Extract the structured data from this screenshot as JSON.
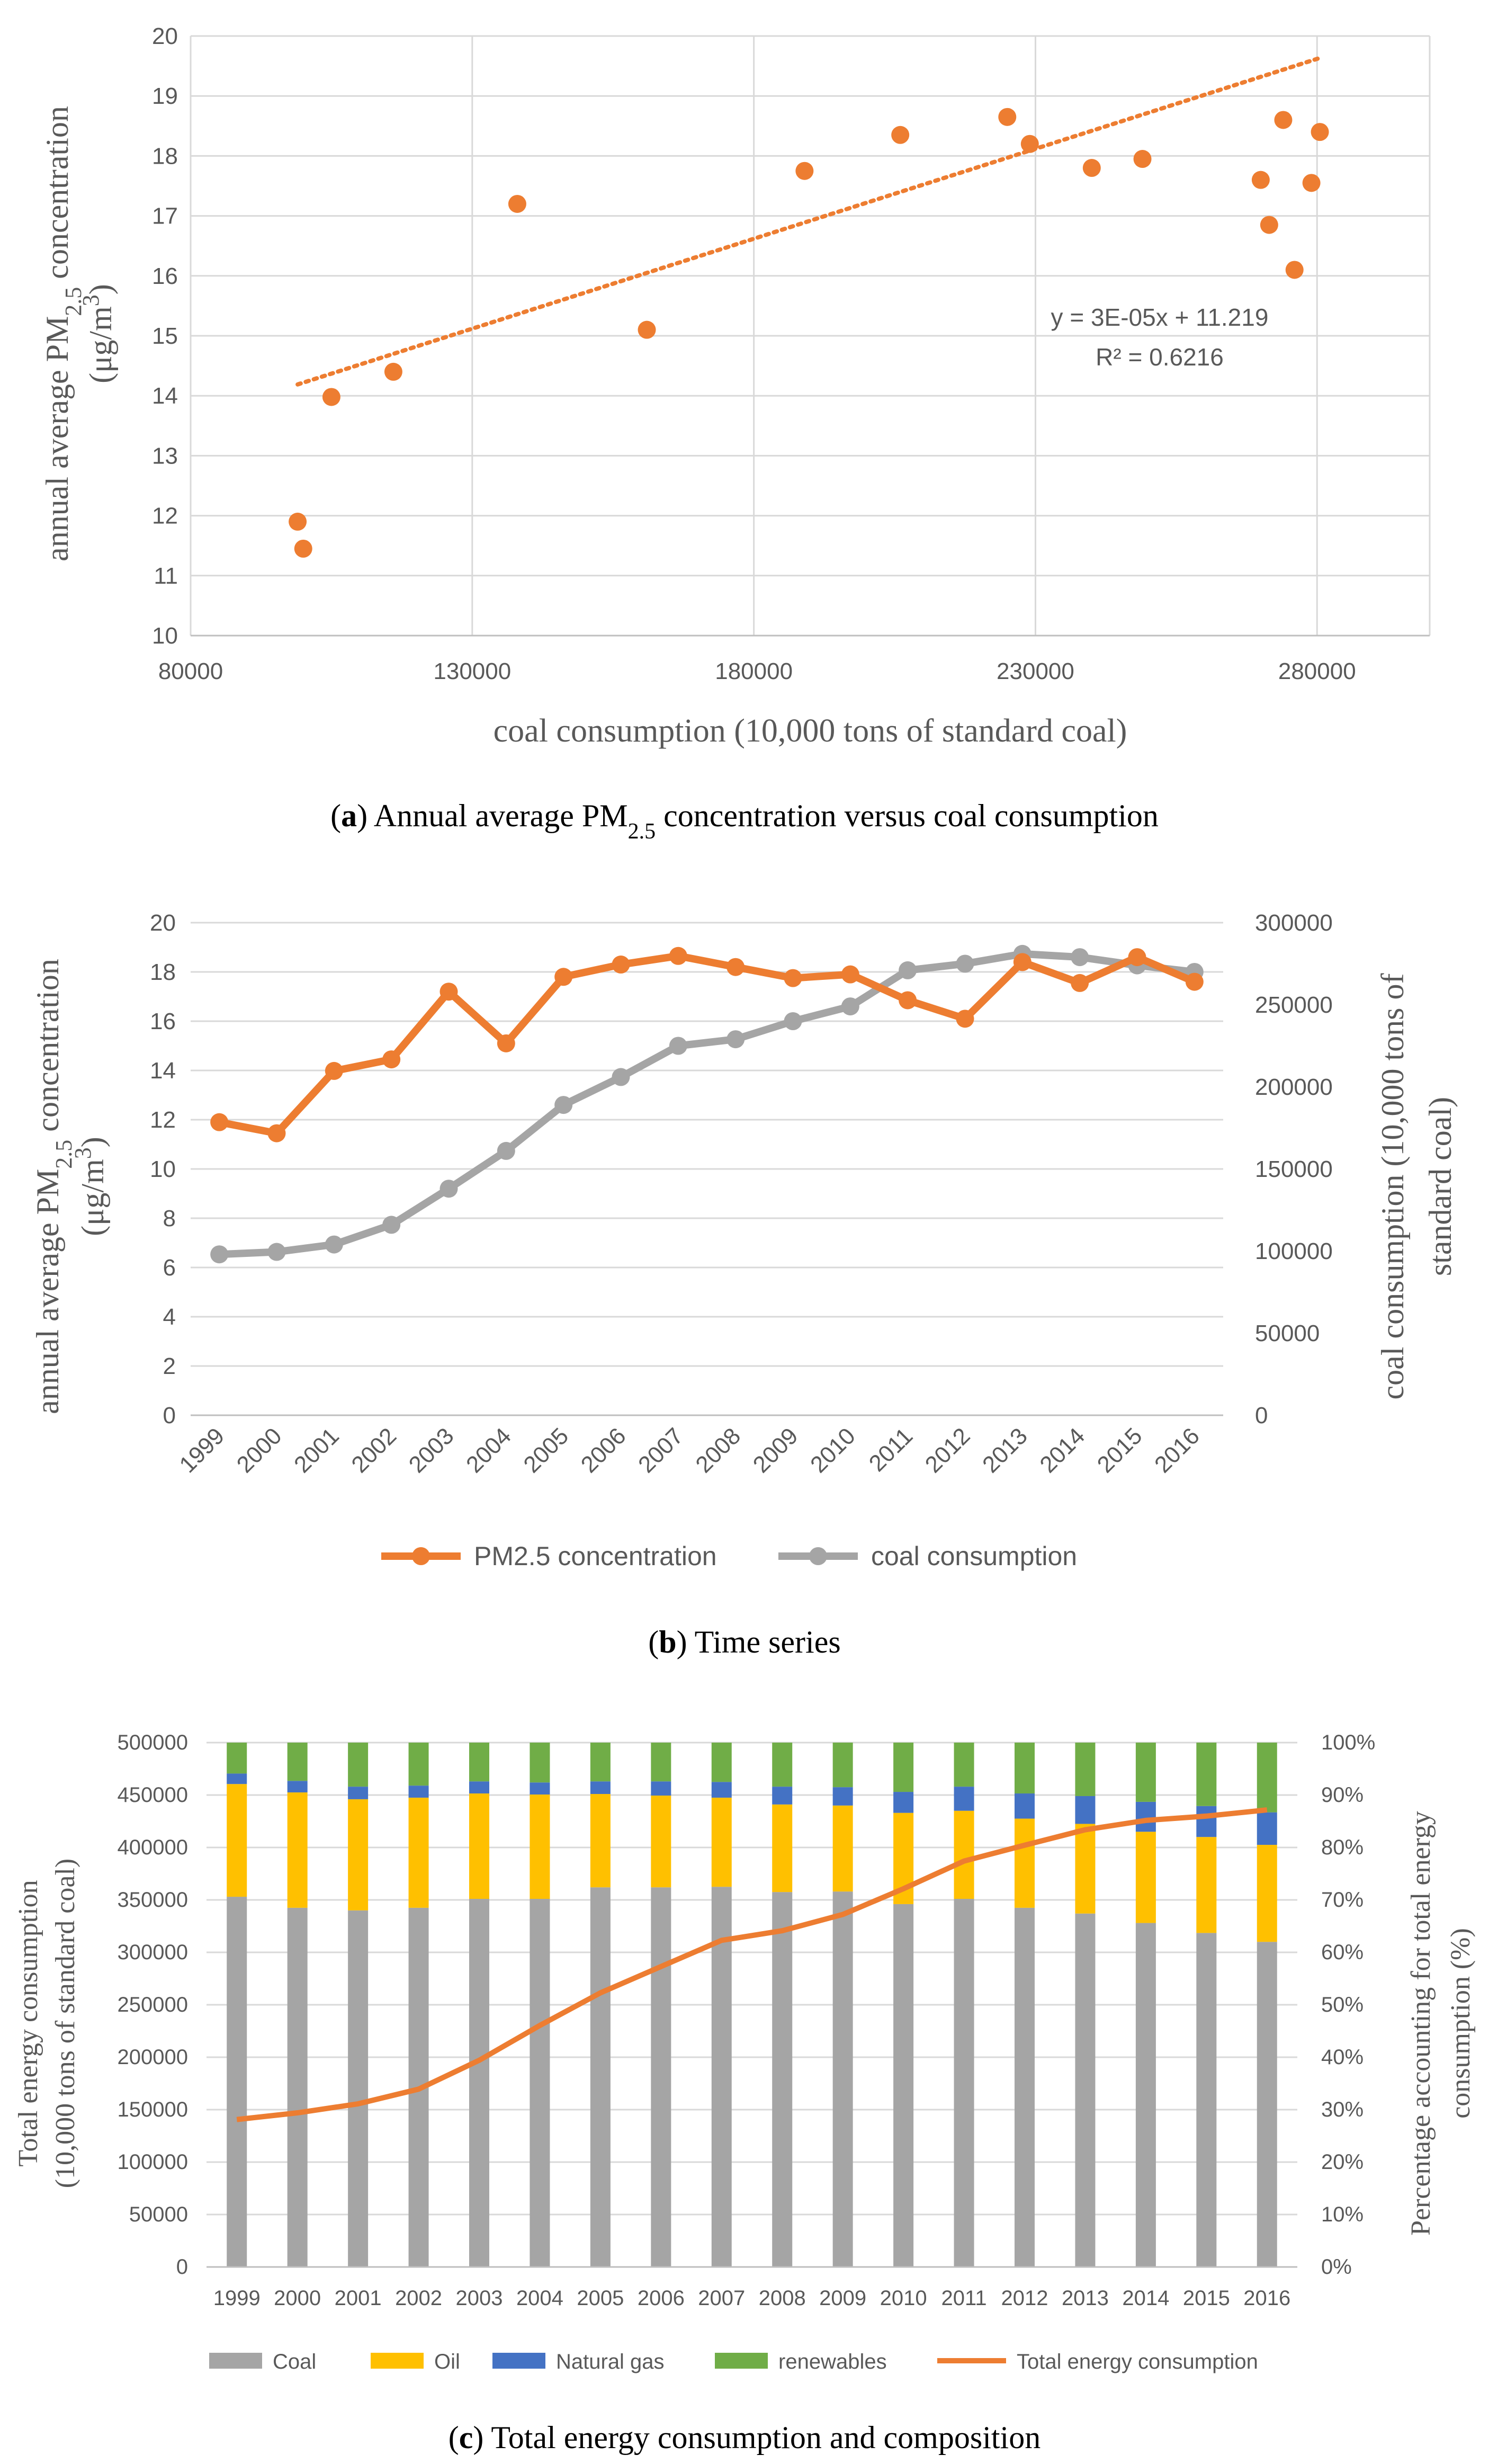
{
  "chart_data": [
    {
      "type": "scatter",
      "label": "a",
      "caption": "Annual average PM2.5 concentration versus coal consumption",
      "caption_parts": {
        "prefix": "Annual average PM",
        "sub": "2.5",
        "suffix": " concentration versus coal consumption"
      },
      "xlabel": "coal consumption (10,000 tons of standard coal)",
      "ylabel_line1": "annual average PM2.5 concentration",
      "ylabel_line2": "(μg/m3)",
      "xlim": [
        80000,
        300000
      ],
      "ylim": [
        10,
        20
      ],
      "xticks": [
        "80000",
        "130000",
        "180000",
        "230000",
        "280000"
      ],
      "yticks": [
        "10",
        "11",
        "12",
        "13",
        "14",
        "15",
        "16",
        "17",
        "18",
        "19",
        "20"
      ],
      "points": [
        {
          "x": 99000,
          "y": 11.9
        },
        {
          "x": 100000,
          "y": 11.45
        },
        {
          "x": 105000,
          "y": 13.98
        },
        {
          "x": 116000,
          "y": 14.4
        },
        {
          "x": 138000,
          "y": 17.2
        },
        {
          "x": 161000,
          "y": 15.1
        },
        {
          "x": 189000,
          "y": 17.75
        },
        {
          "x": 206000,
          "y": 18.35
        },
        {
          "x": 225000,
          "y": 18.65
        },
        {
          "x": 229000,
          "y": 18.2
        },
        {
          "x": 240000,
          "y": 17.8
        },
        {
          "x": 249000,
          "y": 17.95
        },
        {
          "x": 270000,
          "y": 17.6
        },
        {
          "x": 271500,
          "y": 16.85
        },
        {
          "x": 274000,
          "y": 18.6
        },
        {
          "x": 276000,
          "y": 16.1
        },
        {
          "x": 279000,
          "y": 17.55
        },
        {
          "x": 280500,
          "y": 18.4
        }
      ],
      "trendline": {
        "x": [
          99000,
          280500
        ],
        "slope": 3e-05,
        "intercept": 11.219,
        "style": "dotted"
      },
      "equation": "y = 3E-05x + 11.219",
      "r_squared": "R² = 0.6216",
      "color": "#ed7d31"
    },
    {
      "type": "line",
      "label": "b",
      "caption": "Time series",
      "categories": [
        "1999",
        "2000",
        "2001",
        "2002",
        "2003",
        "2004",
        "2005",
        "2006",
        "2007",
        "2008",
        "2009",
        "2010",
        "2011",
        "2012",
        "2013",
        "2014",
        "2015",
        "2016"
      ],
      "ylabel_left_line1": "annual average PM2.5 concentration",
      "ylabel_left_line2": "(μg/m3)",
      "ylabel_right_line1": "coal consumption (10,000 tons of",
      "ylabel_right_line2": "standard coal)",
      "ylim_left": [
        0,
        20
      ],
      "ylim_right": [
        0,
        300000
      ],
      "yticks_left": [
        "0",
        "2",
        "4",
        "6",
        "8",
        "10",
        "12",
        "14",
        "16",
        "18",
        "20"
      ],
      "yticks_right": [
        "0",
        "50000",
        "100000",
        "150000",
        "200000",
        "250000",
        "300000"
      ],
      "series": [
        {
          "name": "PM2.5 concentration",
          "axis": "left",
          "color": "#ed7d31",
          "values": [
            11.9,
            11.45,
            13.98,
            14.45,
            17.2,
            15.1,
            17.8,
            18.3,
            18.65,
            18.2,
            17.75,
            17.9,
            16.85,
            16.1,
            18.4,
            17.55,
            18.6,
            17.6
          ]
        },
        {
          "name": "coal consumption",
          "axis": "right",
          "color": "#a5a5a5",
          "values": [
            98000,
            99500,
            104000,
            116000,
            138000,
            161000,
            189000,
            206000,
            225000,
            229000,
            240000,
            249000,
            271000,
            275000,
            281000,
            279000,
            274000,
            270000
          ]
        }
      ]
    },
    {
      "type": "bar",
      "stacked": true,
      "label": "c",
      "caption": "Total energy consumption and composition",
      "categories": [
        "1999",
        "2000",
        "2001",
        "2002",
        "2003",
        "2004",
        "2005",
        "2006",
        "2007",
        "2008",
        "2009",
        "2010",
        "2011",
        "2012",
        "2013",
        "2014",
        "2015",
        "2016"
      ],
      "ylabel_left_line1": "Total energy consumption",
      "ylabel_left_line2": "(10,000 tons of standard coal)",
      "ylabel_right_line1": "Percentage accounting for total energy",
      "ylabel_right_line2": "consumption (%)",
      "ylim_left": [
        0,
        500000
      ],
      "ylim_right": [
        0,
        100
      ],
      "yticks_left": [
        "0",
        "50000",
        "100000",
        "150000",
        "200000",
        "250000",
        "300000",
        "350000",
        "400000",
        "450000",
        "500000"
      ],
      "yticks_right": [
        "0%",
        "10%",
        "20%",
        "30%",
        "40%",
        "50%",
        "60%",
        "70%",
        "80%",
        "90%",
        "100%"
      ],
      "series": [
        {
          "name": "Coal",
          "color": "#a5a5a5",
          "values": [
            70.6,
            68.5,
            68.0,
            68.5,
            70.2,
            70.2,
            72.4,
            72.4,
            72.5,
            71.5,
            71.6,
            69.2,
            70.2,
            68.5,
            67.4,
            65.6,
            63.7,
            62.0
          ]
        },
        {
          "name": "Oil",
          "color": "#ffc000",
          "values": [
            21.5,
            22.0,
            21.2,
            21.0,
            20.1,
            19.9,
            17.8,
            17.5,
            17.0,
            16.7,
            16.4,
            17.4,
            16.8,
            17.0,
            17.1,
            17.4,
            18.3,
            18.5
          ]
        },
        {
          "name": "Natural gas",
          "color": "#4472c4",
          "values": [
            2.0,
            2.2,
            2.4,
            2.3,
            2.3,
            2.3,
            2.4,
            2.7,
            3.0,
            3.4,
            3.5,
            4.0,
            4.6,
            4.8,
            5.3,
            5.7,
            5.9,
            6.2
          ]
        },
        {
          "name": "renewables",
          "color": "#70ad47",
          "values": [
            5.9,
            7.3,
            8.4,
            8.2,
            7.4,
            7.6,
            7.4,
            7.4,
            7.5,
            8.4,
            8.5,
            9.4,
            8.4,
            9.7,
            10.2,
            11.3,
            12.1,
            13.3
          ]
        }
      ],
      "line_series": {
        "name": "Total energy consumption",
        "color": "#ed7d31",
        "values": [
          140600,
          146964,
          155547,
          169577,
          197083,
          230281,
          261369,
          286467,
          311442,
          320611,
          336126,
          360648,
          387043,
          402138,
          416913,
          425806,
          429905,
          435819
        ]
      }
    }
  ]
}
